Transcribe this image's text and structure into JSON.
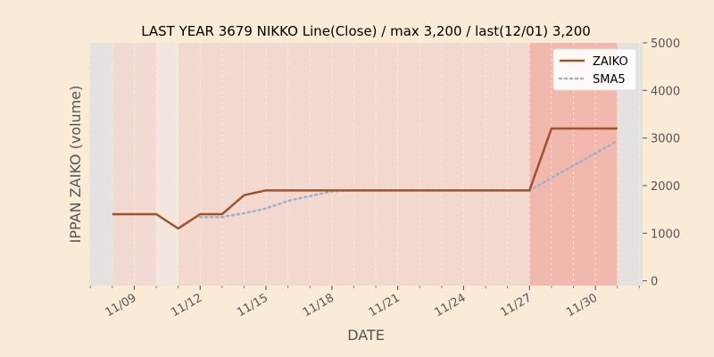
{
  "chart_data": {
    "type": "line",
    "title": "LAST YEAR 3679 NIKKO Line(Close) / max 3,200 / last(12/01) 3,200",
    "xlabel": "DATE",
    "ylabel": "IPPAN ZAIKO (volume)",
    "ylim": [
      -100,
      5000
    ],
    "y_ticks": [
      0,
      1000,
      2000,
      3000,
      4000,
      5000
    ],
    "y_axis_side": "right",
    "x_day_range": [
      6.95,
      32.15
    ],
    "x_ticks": [
      {
        "day": 9,
        "label": "11/09"
      },
      {
        "day": 12,
        "label": "11/12"
      },
      {
        "day": 15,
        "label": "11/15"
      },
      {
        "day": 18,
        "label": "11/18"
      },
      {
        "day": 21,
        "label": "11/21"
      },
      {
        "day": 24,
        "label": "11/24"
      },
      {
        "day": 27,
        "label": "11/27"
      },
      {
        "day": 30,
        "label": "11/30"
      }
    ],
    "grid": true,
    "legend_position": "top-right",
    "series": [
      {
        "name": "ZAIKO",
        "color": "#a0522d",
        "style": "solid",
        "points": [
          {
            "date": "11/08",
            "day": 8,
            "value": 1400
          },
          {
            "date": "11/09",
            "day": 9,
            "value": 1400
          },
          {
            "date": "11/10",
            "day": 10,
            "value": 1400
          },
          {
            "date": "11/11",
            "day": 11,
            "value": 1100
          },
          {
            "date": "11/12",
            "day": 12,
            "value": 1400
          },
          {
            "date": "11/13",
            "day": 13,
            "value": 1400
          },
          {
            "date": "11/14",
            "day": 14,
            "value": 1800
          },
          {
            "date": "11/15",
            "day": 15,
            "value": 1900
          },
          {
            "date": "11/16",
            "day": 16,
            "value": 1900
          },
          {
            "date": "11/17",
            "day": 17,
            "value": 1900
          },
          {
            "date": "11/18",
            "day": 18,
            "value": 1900
          },
          {
            "date": "11/19",
            "day": 19,
            "value": 1900
          },
          {
            "date": "11/20",
            "day": 20,
            "value": 1900
          },
          {
            "date": "11/21",
            "day": 21,
            "value": 1900
          },
          {
            "date": "11/22",
            "day": 22,
            "value": 1900
          },
          {
            "date": "11/23",
            "day": 23,
            "value": 1900
          },
          {
            "date": "11/24",
            "day": 24,
            "value": 1900
          },
          {
            "date": "11/25",
            "day": 25,
            "value": 1900
          },
          {
            "date": "11/26",
            "day": 26,
            "value": 1900
          },
          {
            "date": "11/27",
            "day": 27,
            "value": 1900
          },
          {
            "date": "11/28",
            "day": 28,
            "value": 3200
          },
          {
            "date": "11/29",
            "day": 29,
            "value": 3200
          },
          {
            "date": "11/30",
            "day": 30,
            "value": 3200
          },
          {
            "date": "12/01",
            "day": 31,
            "value": 3200
          }
        ]
      },
      {
        "name": "SMA5",
        "color": "#9fb0c7",
        "style": "dotted",
        "points": [
          {
            "date": "11/12",
            "day": 12,
            "value": 1340
          },
          {
            "date": "11/13",
            "day": 13,
            "value": 1340
          },
          {
            "date": "11/14",
            "day": 14,
            "value": 1420
          },
          {
            "date": "11/15",
            "day": 15,
            "value": 1520
          },
          {
            "date": "11/16",
            "day": 16,
            "value": 1680
          },
          {
            "date": "11/17",
            "day": 17,
            "value": 1780
          },
          {
            "date": "11/18",
            "day": 18,
            "value": 1880
          },
          {
            "date": "11/19",
            "day": 19,
            "value": 1900
          },
          {
            "date": "11/20",
            "day": 20,
            "value": 1900
          },
          {
            "date": "11/21",
            "day": 21,
            "value": 1900
          },
          {
            "date": "11/22",
            "day": 22,
            "value": 1900
          },
          {
            "date": "11/23",
            "day": 23,
            "value": 1900
          },
          {
            "date": "11/24",
            "day": 24,
            "value": 1900
          },
          {
            "date": "11/25",
            "day": 25,
            "value": 1900
          },
          {
            "date": "11/26",
            "day": 26,
            "value": 1900
          },
          {
            "date": "11/27",
            "day": 27,
            "value": 1900
          },
          {
            "date": "11/28",
            "day": 28,
            "value": 2160
          },
          {
            "date": "11/29",
            "day": 29,
            "value": 2420
          },
          {
            "date": "11/30",
            "day": 30,
            "value": 2680
          },
          {
            "date": "12/01",
            "day": 31,
            "value": 2940
          }
        ]
      }
    ],
    "background_bands": [
      {
        "from_day": 6.95,
        "to_day": 8,
        "color": "#e4e1df"
      },
      {
        "from_day": 8,
        "to_day": 10,
        "color": "#f2d9d1"
      },
      {
        "from_day": 10,
        "to_day": 11,
        "color": "#f2e6de"
      },
      {
        "from_day": 11,
        "to_day": 27,
        "color": "#f3d8d0"
      },
      {
        "from_day": 27,
        "to_day": 31,
        "color": "#f2b8ad"
      },
      {
        "from_day": 31,
        "to_day": 32.15,
        "color": "#e4e1df"
      }
    ]
  }
}
